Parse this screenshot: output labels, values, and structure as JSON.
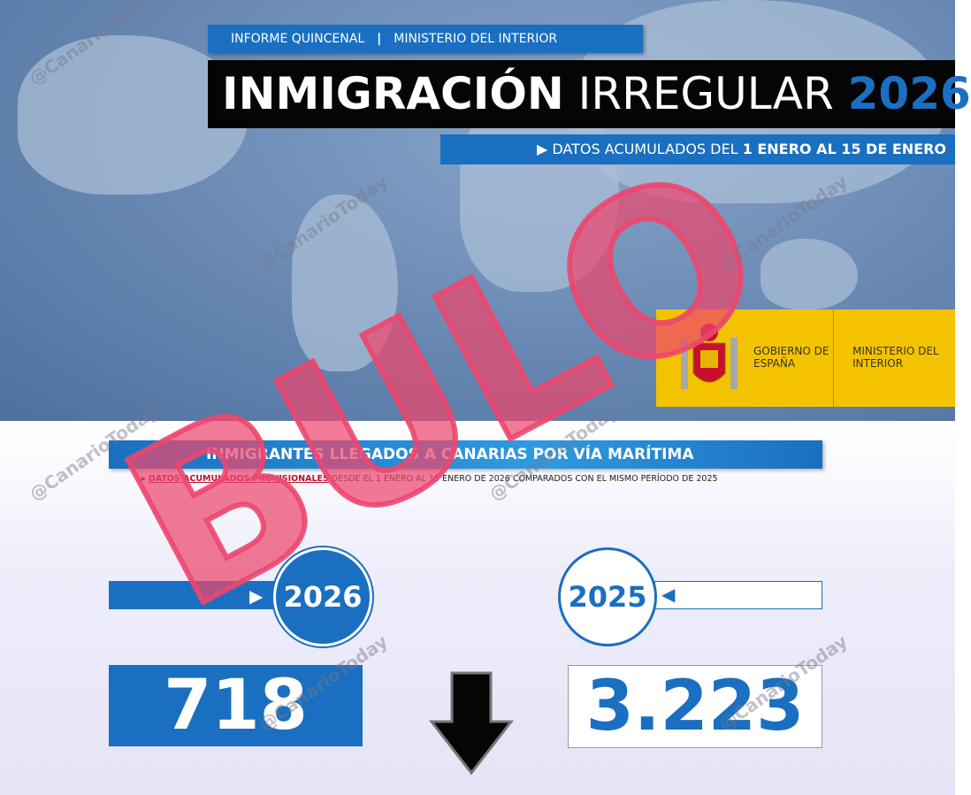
{
  "header": {
    "kicker_left": "INFORME QUINCENAL",
    "kicker_separator": "|",
    "kicker_right": "MINISTERIO DEL INTERIOR",
    "title_part1": "INMIGRACIÓN",
    "title_part2": "IRREGULAR",
    "title_year": "2026",
    "subtitle_prefix": "DATOS ACUMULADOS DEL",
    "subtitle_range": "1 ENERO AL 15 DE ENERO"
  },
  "logo": {
    "government": "GOBIERNO DE ESPAÑA",
    "ministry": "MINISTERIO DEL INTERIOR"
  },
  "section": {
    "title": "INMIGRANTES LLEGADOS A CANARIAS POR VÍA MARÍTIMA",
    "note_highlight": "DATOS ACUMULADOS PROVISIONALES",
    "note_rest": "DESDE EL 1 ENERO AL 15 ENERO DE 2026 COMPARADOS CON EL MISMO PERÍODO DE 2025"
  },
  "comparison": {
    "current_year": "2026",
    "current_value": "718",
    "previous_year": "2025",
    "previous_value": "3.223"
  },
  "stamp": "BULO",
  "watermark": "@CanarioToday"
}
